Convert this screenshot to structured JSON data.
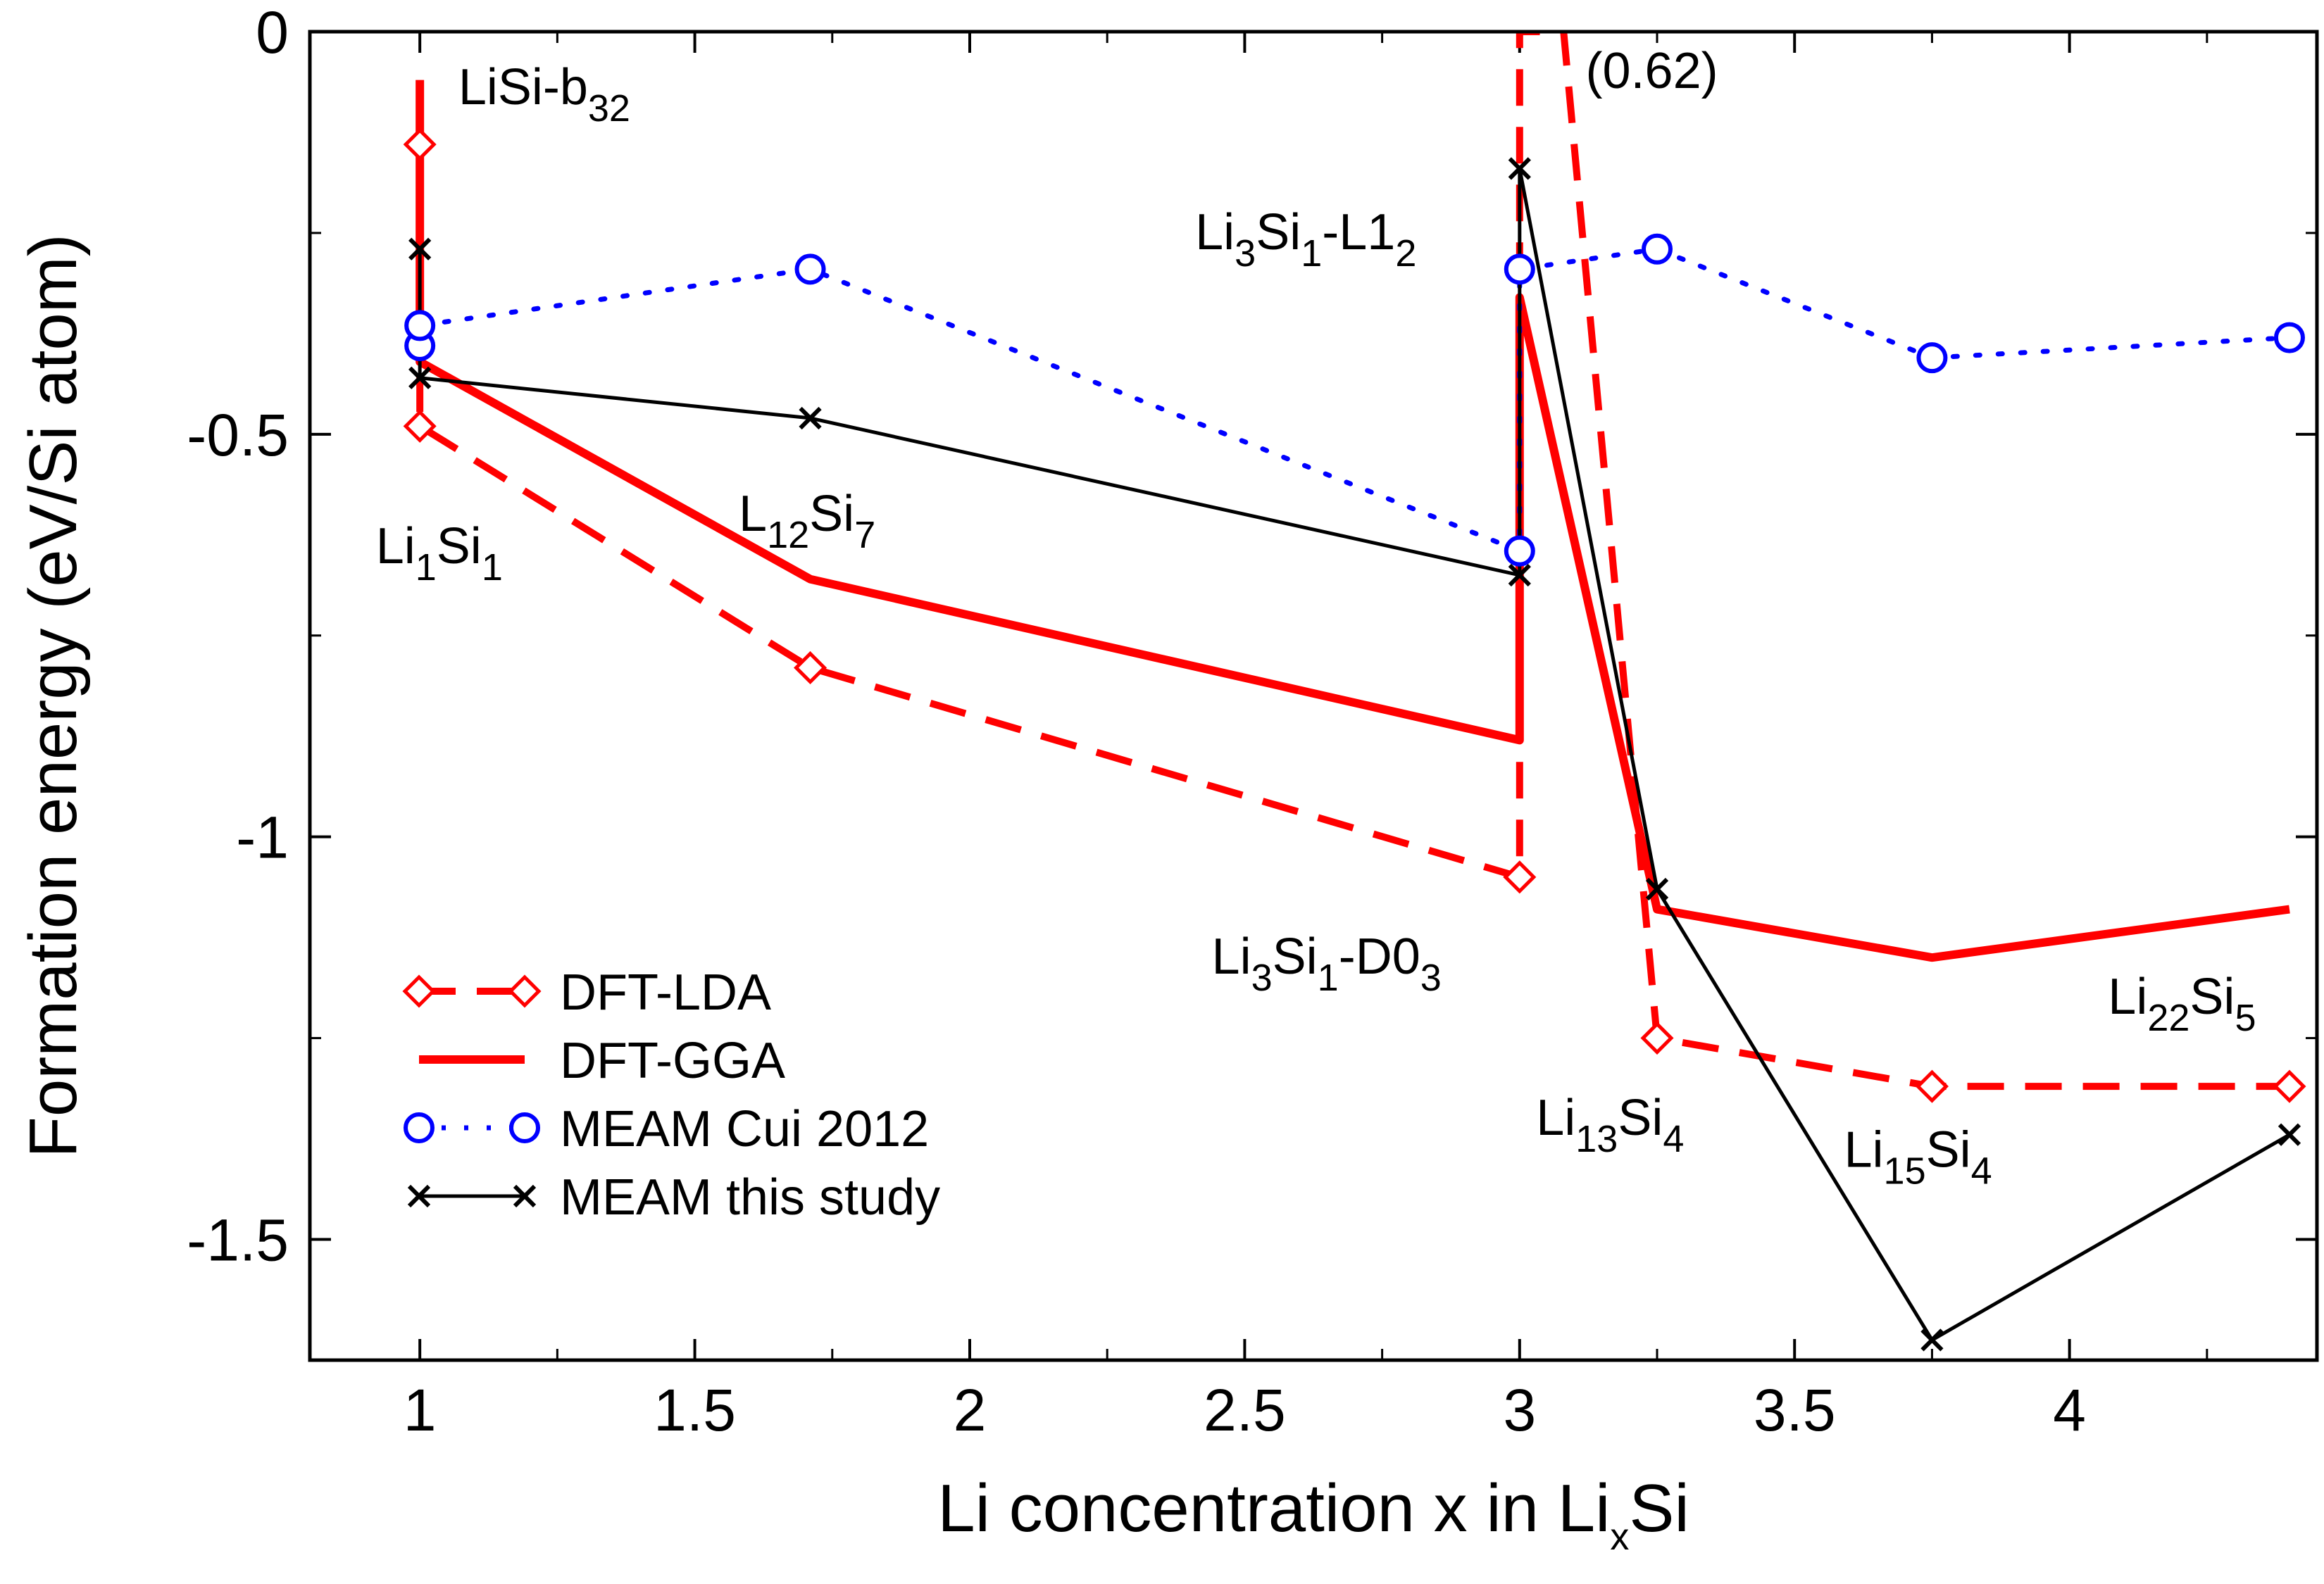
{
  "chart_data": {
    "type": "line",
    "xlabel": {
      "main": "Li concentration x in Li",
      "sub": "x",
      "tail": "Si"
    },
    "ylabel": "Formation energy (eV/Si atom)",
    "xlim": [
      0.8,
      4.45
    ],
    "ylim": [
      -1.65,
      0.0
    ],
    "xticks": [
      1,
      1.5,
      2,
      2.5,
      3,
      3.5,
      4
    ],
    "xtick_labels": [
      "1",
      "1.5",
      "2",
      "2.5",
      "3",
      "3.5",
      "4"
    ],
    "yticks": [
      0,
      -0.5,
      -1,
      -1.5
    ],
    "ytick_labels": [
      "0",
      "-0.5",
      "-1",
      "-1.5"
    ],
    "colors": {
      "red": "#ff0000",
      "blue": "#0000ff",
      "black": "#000000"
    },
    "series": [
      {
        "name": "DFT-LDA",
        "key": "lda",
        "color": "#ff0000",
        "style": "dashed",
        "marker": "diamond",
        "x": [
          1,
          1,
          1.71,
          3,
          3,
          3.08,
          3.25,
          3.75,
          4.4
        ],
        "y": [
          -0.14,
          -0.49,
          -0.79,
          -1.05,
          0.0,
          0.0,
          -1.25,
          -1.31,
          -1.31
        ],
        "markers": [
          [
            1,
            -0.14
          ],
          [
            1,
            -0.49
          ],
          [
            1.71,
            -0.79
          ],
          [
            3,
            -1.05
          ],
          [
            3.25,
            -1.25
          ],
          [
            3.75,
            -1.31
          ],
          [
            4.4,
            -1.31
          ]
        ]
      },
      {
        "name": "DFT-GGA",
        "key": "gga",
        "color": "#ff0000",
        "style": "solid",
        "marker": "none",
        "x": [
          1,
          1,
          1.71,
          3,
          3,
          3.25,
          3.75,
          4.4
        ],
        "y": [
          -0.06,
          -0.41,
          -0.68,
          -0.88,
          -0.33,
          -1.09,
          -1.15,
          -1.09
        ],
        "markers": []
      },
      {
        "name": "MEAM Cui 2012",
        "key": "cui",
        "color": "#0000ff",
        "style": "dotted",
        "marker": "circle",
        "x": [
          1,
          1,
          1.71,
          3,
          3,
          3.25,
          3.75,
          4.4
        ],
        "y": [
          -0.39,
          -0.365,
          -0.295,
          -0.645,
          -0.295,
          -0.27,
          -0.405,
          -0.38
        ],
        "markers": [
          [
            1,
            -0.39
          ],
          [
            1,
            -0.365
          ],
          [
            1.71,
            -0.295
          ],
          [
            3,
            -0.645
          ],
          [
            3,
            -0.295
          ],
          [
            3.25,
            -0.27
          ],
          [
            3.75,
            -0.405
          ],
          [
            4.4,
            -0.38
          ]
        ]
      },
      {
        "name": "MEAM this study",
        "key": "this",
        "color": "#000000",
        "style": "solid",
        "marker": "x",
        "x": [
          1,
          1,
          1.71,
          3,
          3,
          3.25,
          3.75,
          4.4
        ],
        "y": [
          -0.27,
          -0.43,
          -0.48,
          -0.675,
          -0.17,
          -1.065,
          -1.625,
          -1.37
        ],
        "markers": [
          [
            1,
            -0.27
          ],
          [
            1,
            -0.43
          ],
          [
            1.71,
            -0.48
          ],
          [
            3,
            -0.675
          ],
          [
            3,
            -0.17
          ],
          [
            3.25,
            -1.065
          ],
          [
            3.75,
            -1.625
          ],
          [
            4.4,
            -1.37
          ]
        ]
      }
    ],
    "annotations": [
      {
        "key": "lisi-b32",
        "parts": [
          {
            "t": "LiSi-b",
            "sub": false
          },
          {
            "t": "32",
            "sub": true
          }
        ],
        "x": 1.07,
        "y": -0.09
      },
      {
        "key": "li1si1",
        "parts": [
          {
            "t": "Li",
            "sub": false
          },
          {
            "t": "1",
            "sub": true
          },
          {
            "t": "Si",
            "sub": false
          },
          {
            "t": "1",
            "sub": true
          }
        ],
        "x": 0.92,
        "y": -0.66
      },
      {
        "key": "l12si7",
        "parts": [
          {
            "t": "L",
            "sub": false
          },
          {
            "t": "12",
            "sub": true
          },
          {
            "t": "Si",
            "sub": false
          },
          {
            "t": "7",
            "sub": true
          }
        ],
        "x": 1.58,
        "y": -0.62
      },
      {
        "key": "li3si1-l12",
        "parts": [
          {
            "t": "Li",
            "sub": false
          },
          {
            "t": "3",
            "sub": true
          },
          {
            "t": "Si",
            "sub": false
          },
          {
            "t": "1",
            "sub": true
          },
          {
            "t": "-L1",
            "sub": false
          },
          {
            "t": "2",
            "sub": true
          }
        ],
        "x": 2.41,
        "y": -0.27
      },
      {
        "key": "li3si1-d03",
        "parts": [
          {
            "t": "Li",
            "sub": false
          },
          {
            "t": "3",
            "sub": true
          },
          {
            "t": "Si",
            "sub": false
          },
          {
            "t": "1",
            "sub": true
          },
          {
            "t": "-D0",
            "sub": false
          },
          {
            "t": "3",
            "sub": true
          }
        ],
        "x": 2.44,
        "y": -1.17
      },
      {
        "key": "li13si4",
        "parts": [
          {
            "t": "Li",
            "sub": false
          },
          {
            "t": "13",
            "sub": true
          },
          {
            "t": "Si",
            "sub": false
          },
          {
            "t": "4",
            "sub": true
          }
        ],
        "x": 3.03,
        "y": -1.37
      },
      {
        "key": "li15si4",
        "parts": [
          {
            "t": "Li",
            "sub": false
          },
          {
            "t": "15",
            "sub": true
          },
          {
            "t": "Si",
            "sub": false
          },
          {
            "t": "4",
            "sub": true
          }
        ],
        "x": 3.59,
        "y": -1.41
      },
      {
        "key": "li22si5",
        "parts": [
          {
            "t": "Li",
            "sub": false
          },
          {
            "t": "22",
            "sub": true
          },
          {
            "t": "Si",
            "sub": false
          },
          {
            "t": "5",
            "sub": true
          }
        ],
        "x": 4.07,
        "y": -1.22
      },
      {
        "key": "lda-offscale",
        "parts": [
          {
            "t": "(0.62)",
            "sub": false
          }
        ],
        "x": 3.12,
        "y": -0.07
      }
    ],
    "legend": {
      "position": "lower-left",
      "entries": [
        "DFT-LDA",
        "DFT-GGA",
        "MEAM Cui 2012",
        "MEAM this study"
      ]
    }
  }
}
